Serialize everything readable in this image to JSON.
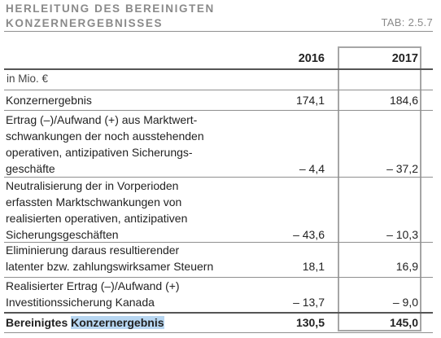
{
  "table": {
    "title_line1": "HERLEITUNG DES BEREINIGTEN",
    "title_line2": "KONZERNERGEBNISSES",
    "tab_ref": "TAB: 2.5.7",
    "col_2016": "2016",
    "col_2017": "2017",
    "unit": "in Mio. €",
    "rows": [
      {
        "label": "Konzernergebnis",
        "v2016": "174,1",
        "v2017": "184,6"
      },
      {
        "label": "Ertrag (–)/Aufwand (+) aus Marktwert-\nschwankungen der noch ausstehenden\noperativen, antizipativen Sicherungs-\ngeschäfte",
        "v2016": "– 4,4",
        "v2017": "– 37,2"
      },
      {
        "label": "Neutralisierung der in Vorperioden\nerfassten Marktschwankungen von\nrealisierten operativen, antizipativen\nSicherungsgeschäften",
        "v2016": "– 43,6",
        "v2017": "– 10,3"
      },
      {
        "label": "Eliminierung daraus resultierender\nlatenter bzw. zahlungswirksamer Steuern",
        "v2016": "18,1",
        "v2017": "16,9"
      },
      {
        "label": "Realisierter Ertrag (–)/Aufwand (+)\nInvestitionssicherung Kanada",
        "v2016": "– 13,7",
        "v2017": "– 9,0"
      }
    ],
    "total": {
      "label_part1": "Bereinigtes ",
      "label_part2": "Konzernergebnis",
      "v2016": "130,5",
      "v2017": "145,0"
    }
  }
}
